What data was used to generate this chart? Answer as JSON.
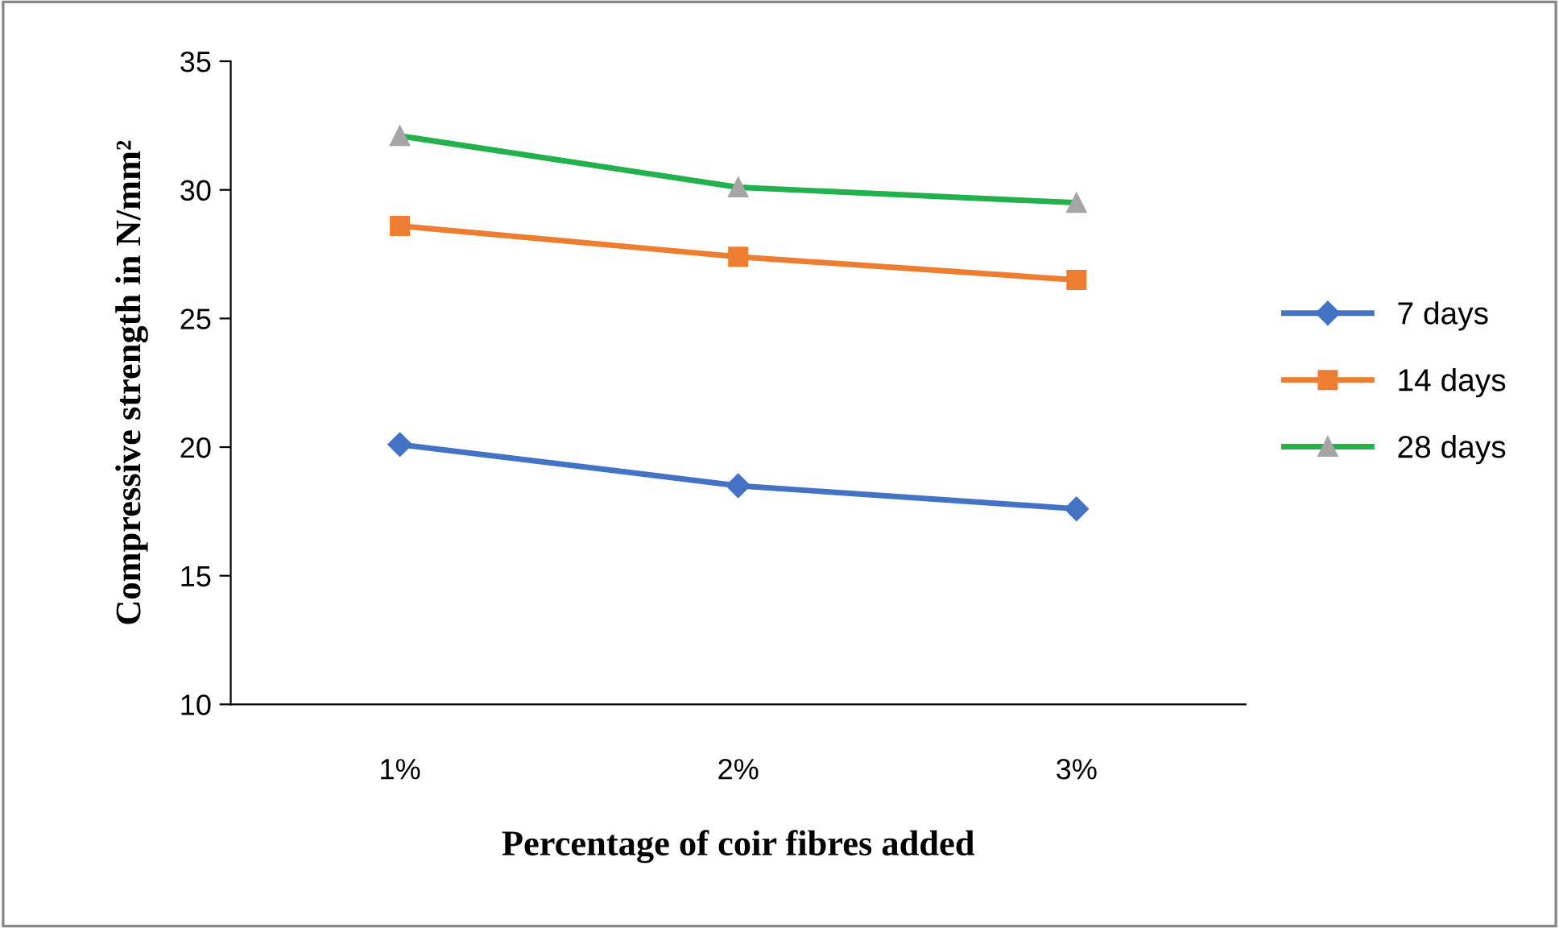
{
  "chart_data": {
    "type": "line",
    "xlabel": "Percentage of coir fibres added",
    "ylabel": "Compressive strength in N/mm²",
    "categories": [
      "1%",
      "2%",
      "3%"
    ],
    "series": [
      {
        "name": "7 days",
        "color": "#4472c4",
        "marker": "diamond",
        "values": [
          20.1,
          18.5,
          17.6
        ]
      },
      {
        "name": "14 days",
        "color": "#ed7d31",
        "marker": "square",
        "values": [
          28.6,
          27.4,
          26.5
        ]
      },
      {
        "name": "28 days",
        "color": "#22b14c",
        "marker": "triangle",
        "colors": [
          "#a5a5a5",
          "#a5a5a5",
          "#a5a5a5"
        ],
        "values": [
          32.1,
          30.1,
          29.5
        ]
      }
    ],
    "ylim": [
      10,
      35
    ],
    "yticks": [
      10,
      15,
      20,
      25,
      30,
      35
    ],
    "grid": false,
    "legend": "right",
    "line_style": "solid"
  }
}
